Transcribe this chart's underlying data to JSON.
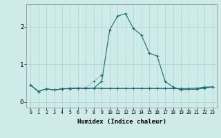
{
  "xlabel": "Humidex (Indice chaleur)",
  "x": [
    0,
    1,
    2,
    3,
    4,
    5,
    6,
    7,
    8,
    9,
    10,
    11,
    12,
    13,
    14,
    15,
    16,
    17,
    18,
    19,
    20,
    21,
    22,
    23
  ],
  "line_base1": [
    0.45,
    0.28,
    0.35,
    0.32,
    0.35,
    0.36,
    0.37,
    0.36,
    0.37,
    0.36,
    0.36,
    0.36,
    0.36,
    0.36,
    0.36,
    0.36,
    0.36,
    0.36,
    0.36,
    0.36,
    0.36,
    0.37,
    0.4,
    0.4
  ],
  "line_base2": [
    0.45,
    0.28,
    0.35,
    0.32,
    0.35,
    0.36,
    0.37,
    0.36,
    0.37,
    0.36,
    0.36,
    0.36,
    0.36,
    0.36,
    0.36,
    0.36,
    0.36,
    0.36,
    0.36,
    0.35,
    0.34,
    0.34,
    0.37,
    0.4
  ],
  "line_main": [
    0.45,
    0.28,
    0.35,
    0.32,
    0.35,
    0.36,
    0.37,
    0.36,
    0.37,
    0.55,
    1.92,
    2.28,
    2.35,
    1.95,
    1.78,
    1.3,
    1.22,
    0.55,
    0.4,
    0.32,
    0.34,
    0.34,
    0.38,
    0.4
  ],
  "line_dotted_x": [
    3,
    4,
    5,
    6,
    7,
    8,
    9
  ],
  "line_dotted_y": [
    0.32,
    0.35,
    0.35,
    0.36,
    0.38,
    0.55,
    0.72
  ],
  "bg_color": "#ceeae9",
  "line_color": "#1a6b6b",
  "grid_color_major": "#aad4d4",
  "grid_color_minor": "#c5e5e5",
  "ylim": [
    -0.15,
    2.6
  ],
  "xlim": [
    -0.5,
    23.5
  ],
  "yticks": [
    0,
    1,
    2
  ],
  "xticks": [
    0,
    1,
    2,
    3,
    4,
    5,
    6,
    7,
    8,
    9,
    10,
    11,
    12,
    13,
    14,
    15,
    16,
    17,
    18,
    19,
    20,
    21,
    22,
    23
  ],
  "xtick_labels": [
    "0",
    "1",
    "2",
    "3",
    "4",
    "5",
    "6",
    "7",
    "8",
    "9",
    "10",
    "11",
    "12",
    "13",
    "14",
    "15",
    "16",
    "17",
    "18",
    "19",
    "20",
    "21",
    "22",
    "23"
  ]
}
